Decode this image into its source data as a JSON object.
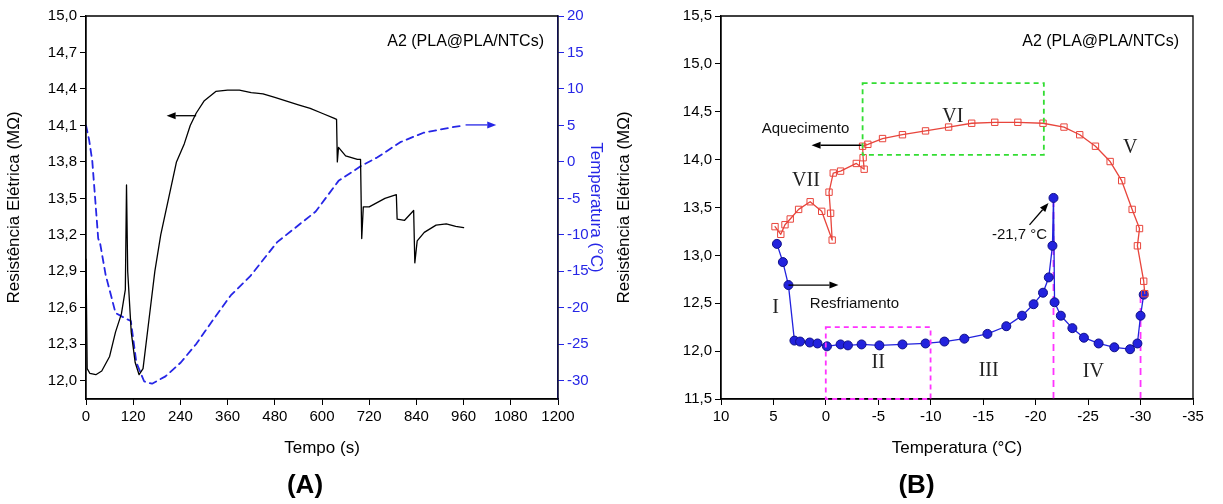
{
  "chart_data": [
    {
      "type": "line",
      "title": "(A)",
      "xlabel": "Tempo (s)",
      "ylabel": "Resistência Elétrica (MΩ)",
      "y2label": "Temperatura (°C)",
      "annotations": [
        "A2 (PLA@PLA/NTCs)"
      ],
      "xlim": [
        0,
        1200
      ],
      "xticks": [
        0,
        120,
        240,
        360,
        480,
        600,
        720,
        840,
        960,
        1080,
        1200
      ],
      "ylim": [
        11.85,
        15.0
      ],
      "yticks": [
        {
          "value": 12.0,
          "label": "12,0"
        },
        {
          "value": 12.3,
          "label": "12,3"
        },
        {
          "value": 12.6,
          "label": "12,6"
        },
        {
          "value": 12.9,
          "label": "12,9"
        },
        {
          "value": 13.2,
          "label": "13,2"
        },
        {
          "value": 13.5,
          "label": "13,5"
        },
        {
          "value": 13.8,
          "label": "13,8"
        },
        {
          "value": 14.1,
          "label": "14,1"
        },
        {
          "value": 14.4,
          "label": "14,4"
        },
        {
          "value": 14.7,
          "label": "14,7"
        },
        {
          "value": 15.0,
          "label": "15,0"
        }
      ],
      "y2lim": [
        -32.5,
        20
      ],
      "y2ticks": [
        -30,
        -25,
        -20,
        -15,
        -10,
        -5,
        0,
        5,
        10,
        15,
        20
      ],
      "marker": "none",
      "series": [
        {
          "color": "#000000",
          "x": [
            0,
            3,
            10,
            25,
            40,
            60,
            75,
            90,
            100,
            103,
            106,
            115,
            125,
            135,
            145,
            160,
            175,
            190,
            210,
            230,
            250,
            265,
            280,
            300,
            330,
            360,
            390,
            420,
            450,
            480,
            510,
            540,
            570,
            600,
            630,
            637,
            639,
            642,
            660,
            690,
            698,
            701,
            705,
            720,
            760,
            789,
            791,
            810,
            833,
            836,
            842,
            860,
            890,
            916,
            940,
            960
          ],
          "values": [
            13.0,
            12.1,
            12.06,
            12.05,
            12.08,
            12.2,
            12.4,
            12.55,
            12.75,
            13.61,
            12.9,
            12.4,
            12.15,
            12.05,
            12.1,
            12.5,
            12.9,
            13.2,
            13.5,
            13.8,
            13.95,
            14.1,
            14.2,
            14.3,
            14.38,
            14.39,
            14.39,
            14.37,
            14.36,
            14.33,
            14.3,
            14.27,
            14.24,
            14.2,
            14.16,
            14.15,
            13.8,
            13.92,
            13.85,
            13.82,
            13.82,
            13.17,
            13.43,
            13.43,
            13.5,
            13.53,
            13.33,
            13.32,
            13.4,
            12.97,
            13.15,
            13.22,
            13.28,
            13.29,
            13.27,
            13.26
          ]
        },
        {
          "color": "#2626e6",
          "axis": "y2",
          "line_style": "dashed",
          "x": [
            0,
            8,
            16,
            31,
            36,
            50,
            65,
            75,
            95,
            114,
            128,
            148,
            168,
            202,
            241,
            281,
            325,
            368,
            417,
            486,
            584,
            642,
            701,
            740,
            799,
            858,
            936,
            950
          ],
          "values": [
            5.0,
            3.0,
            0.1,
            -10.5,
            -11.2,
            -15.5,
            -18.6,
            -20.7,
            -21.3,
            -21.8,
            -27.5,
            -30.1,
            -30.4,
            -29.4,
            -27.5,
            -24.9,
            -21.5,
            -18.3,
            -15.7,
            -11.0,
            -6.8,
            -2.6,
            -0.5,
            0.6,
            2.7,
            4.0,
            4.8,
            4.9
          ]
        }
      ]
    },
    {
      "type": "line",
      "title": "(B)",
      "xlabel": "Temperatura (°C)",
      "ylabel": "Resistência Elétrica (MΩ)",
      "annotations": [
        "A2 (PLA@PLA/NTCs)",
        {
          "text": "Aquecimento",
          "x": -3.4,
          "y": 14.15
        },
        {
          "text": "Resfriamento",
          "x": 3.57,
          "y": 12.69
        },
        {
          "text": "-21,7 °C",
          "x": -21.7,
          "y": 13.6
        },
        "I",
        "II",
        "III",
        "IV",
        "V",
        "VI",
        "VII"
      ],
      "xlim": [
        10,
        -35
      ],
      "xticks": [
        10,
        5,
        0,
        -5,
        -10,
        -15,
        -20,
        -25,
        -30,
        -35
      ],
      "ylim": [
        11.5,
        15.5
      ],
      "yticks": [
        {
          "value": 11.5,
          "label": "11,5"
        },
        {
          "value": 12.0,
          "label": "12,0"
        },
        {
          "value": 12.5,
          "label": "12,5"
        },
        {
          "value": 13.0,
          "label": "13,0"
        },
        {
          "value": 13.5,
          "label": "13,5"
        },
        {
          "value": 14.0,
          "label": "14,0"
        },
        {
          "value": 14.5,
          "label": "14,5"
        },
        {
          "value": 15.0,
          "label": "15,0"
        },
        {
          "value": 15.5,
          "label": "15,5"
        }
      ],
      "ref_lines": [
        {
          "axis": "x",
          "value": -21.7,
          "color": "#ff33ff",
          "line_style": "dashed"
        },
        {
          "axis": "x",
          "value": -30,
          "color": "#ff33ff",
          "line_style": "dashed"
        }
      ],
      "series": [
        {
          "color": "#e8453c",
          "marker": "square",
          "x": [
            -30.4,
            -30.3,
            -29.7,
            -29.9,
            -29.2,
            -28.2,
            -27.1,
            -25.7,
            -24.2,
            -22.7,
            -20.7,
            -18.3,
            -16.1,
            -13.9,
            -11.7,
            -9.5,
            -7.3,
            -5.4,
            -4.0,
            -3.5,
            -3.55,
            -3.65,
            -2.9,
            -1.4,
            -0.7,
            -0.3,
            -0.45,
            -0.6,
            0.4,
            1.5,
            2.6,
            3.4,
            3.9,
            4.3,
            4.85
          ],
          "values": [
            12.6,
            12.73,
            13.1,
            13.28,
            13.48,
            13.78,
            13.98,
            14.14,
            14.26,
            14.34,
            14.38,
            14.39,
            14.39,
            14.38,
            14.34,
            14.3,
            14.26,
            14.22,
            14.16,
            14.14,
            14.02,
            13.9,
            13.96,
            13.88,
            13.86,
            13.66,
            13.44,
            13.16,
            13.46,
            13.56,
            13.48,
            13.38,
            13.32,
            13.22,
            13.3
          ]
        },
        {
          "color": "#2222dd",
          "marker": "circle",
          "x": [
            4.67,
            4.1,
            3.57,
            3.0,
            2.46,
            1.54,
            0.8,
            -0.1,
            -1.4,
            -2.1,
            -3.4,
            -5.1,
            -7.3,
            -9.5,
            -11.3,
            -13.2,
            -15.4,
            -17.2,
            -18.7,
            -19.8,
            -20.7,
            -21.25,
            -21.6,
            -21.7,
            -21.8,
            -22.4,
            -23.5,
            -24.6,
            -26.0,
            -27.5,
            -29.0,
            -29.7,
            -30.0,
            -30.3
          ],
          "values": [
            13.12,
            12.93,
            12.69,
            12.11,
            12.1,
            12.09,
            12.08,
            12.05,
            12.07,
            12.06,
            12.07,
            12.06,
            12.07,
            12.08,
            12.1,
            12.13,
            12.18,
            12.26,
            12.37,
            12.49,
            12.61,
            12.77,
            13.1,
            13.6,
            12.51,
            12.37,
            12.24,
            12.14,
            12.08,
            12.04,
            12.02,
            12.08,
            12.37,
            12.59
          ]
        }
      ]
    }
  ]
}
